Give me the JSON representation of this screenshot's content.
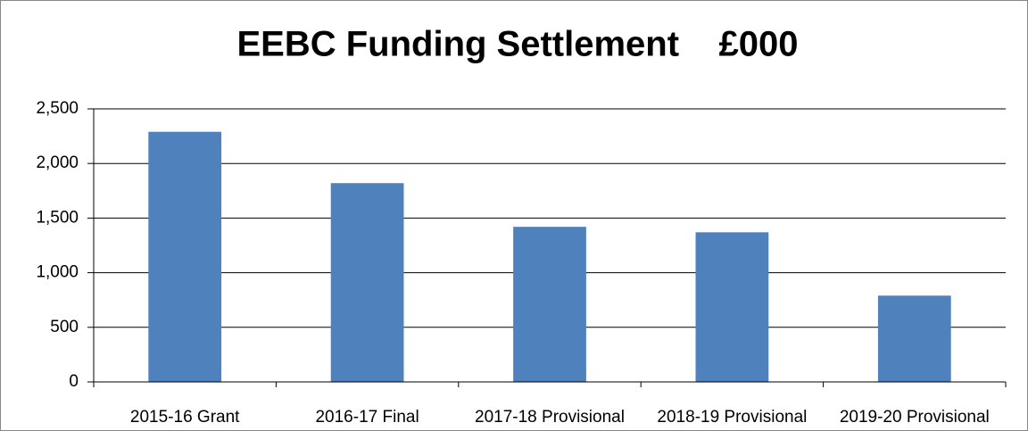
{
  "chart_data": {
    "type": "bar",
    "title": "EEBC Funding Settlement    £000",
    "categories": [
      "2015-16 Grant",
      "2016-17 Final",
      "2017-18 Provisional",
      "2018-19 Provisional",
      "2019-20 Provisional"
    ],
    "values": [
      2290,
      1820,
      1420,
      1370,
      790
    ],
    "color": "#4f81bd",
    "ylim": [
      0,
      2500
    ],
    "yticks": [
      0,
      500,
      {
        "value": 1000,
        "label": "1,000"
      },
      {
        "value": 1500,
        "label": "1,500"
      },
      {
        "value": 2000,
        "label": "2,000"
      },
      {
        "value": 2500,
        "label": "2,500"
      }
    ],
    "grid": true
  }
}
